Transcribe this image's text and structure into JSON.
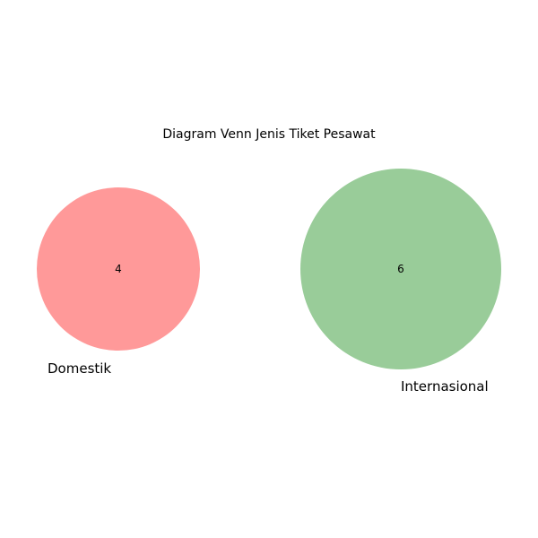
{
  "title": "Diagram Venn Jenis Tiket Pesawat",
  "sets": [
    {
      "name": "Domestik",
      "count": "4",
      "color": "#ff9999"
    },
    {
      "name": "Internasional",
      "count": "6",
      "color": "#99cc99"
    }
  ],
  "intersection_count": null
}
